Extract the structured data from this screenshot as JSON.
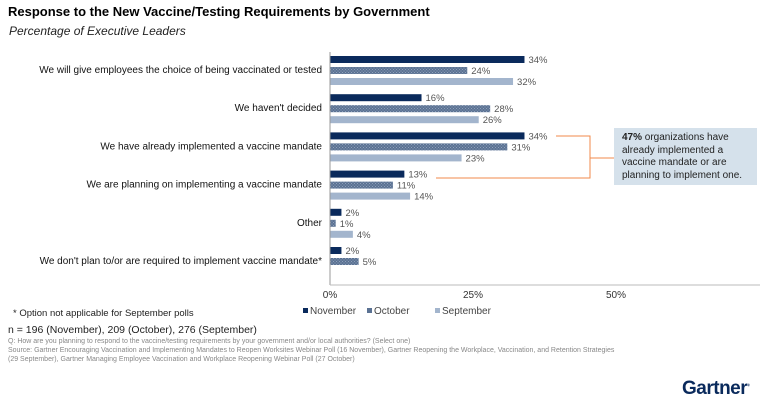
{
  "header": {
    "title": "Response to the New Vaccine/Testing Requirements by Government",
    "subtitle": "Percentage of Executive Leaders"
  },
  "chart_data": {
    "type": "bar",
    "orientation": "horizontal",
    "title": "Response to the New Vaccine/Testing Requirements by Government",
    "subtitle": "Percentage of Executive Leaders",
    "categories": [
      "We will give employees the choice of being vaccinated or tested",
      "We haven't decided",
      "We have already implemented a vaccine mandate",
      "We are planning on implementing a vaccine mandate",
      "Other",
      "We don't plan to/or are required to implement vaccine mandate*"
    ],
    "series": [
      {
        "name": "November",
        "color": "#0a2a5c",
        "values": [
          34,
          16,
          34,
          13,
          2,
          2
        ]
      },
      {
        "name": "October",
        "color": "#5b7293",
        "pattern": "dotted",
        "values": [
          24,
          28,
          31,
          11,
          1,
          5
        ]
      },
      {
        "name": "September",
        "color": "#a3b5cd",
        "values": [
          32,
          26,
          23,
          14,
          4,
          null
        ]
      }
    ],
    "value_suffix": "%",
    "xlim": [
      0,
      70
    ],
    "xticks": [
      0,
      25,
      50
    ],
    "xtick_labels": [
      "0%",
      "25%",
      "50%"
    ],
    "xlabel": "",
    "ylabel": "",
    "grid": false,
    "legend": "bottom",
    "annotation": {
      "bold": "47%",
      "text": " organizations have already implemented a vaccine mandate or are planning to implement one.",
      "bracket_color": "#f08a4b",
      "background": "#d5e1eb"
    }
  },
  "footer": {
    "footnote": "* Option not applicable for September polls",
    "sample": "n = 196 (November), 209 (October), 276 (September)",
    "question": "Q: How are you planning to respond to the vaccine/testing requirements by your government and/or local authorities? (Select one)",
    "source_1": "Source: Gartner Encouraging Vaccination and Implementing Mandates to Reopen Worksites Webinar Poll (16 November), Gartner Reopening the Workplace, Vaccination, and Retention Strategies",
    "source_2": "(29 September), Gartner Managing Employee Vaccination and Workplace Reopening Webinar Poll (27 October)"
  },
  "brand": {
    "logo": "Gartner"
  }
}
